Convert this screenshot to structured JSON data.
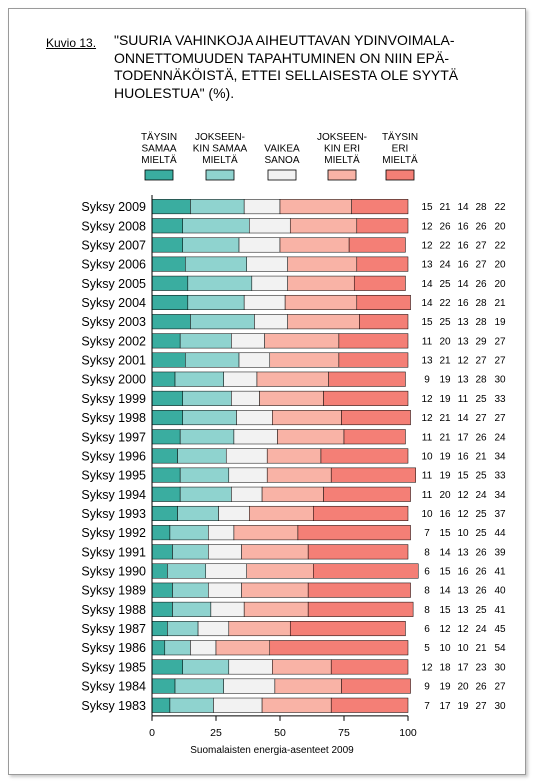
{
  "figure": {
    "label": "Kuvio 13.",
    "title": "\"SUURIA VAHINKOJA AIHEUTTAVAN YDINVOIMALA-\nONNETTOMUUDEN TAPAHTUMINEN ON NIIN EPÄ-\nTODENNÄKÖISTÄ, ETTEI SELLAISESTA OLE SYYTÄ\nHUOLESTUA\" (%).",
    "source": "Suomalaisten energia-asenteet 2009"
  },
  "chart_data": {
    "type": "bar",
    "stacked": true,
    "orientation": "horizontal",
    "xlim": [
      0,
      100
    ],
    "xticks": [
      0,
      25,
      50,
      75,
      100
    ],
    "legend_placement": "top",
    "categories": [
      "Syksy 2009",
      "Syksy 2008",
      "Syksy 2007",
      "Syksy 2006",
      "Syksy 2005",
      "Syksy 2004",
      "Syksy 2003",
      "Syksy 2002",
      "Syksy 2001",
      "Syksy 2000",
      "Syksy 1999",
      "Syksy 1998",
      "Syksy 1997",
      "Syksy 1996",
      "Syksy 1995",
      "Syksy 1994",
      "Syksy 1993",
      "Syksy 1992",
      "Syksy 1991",
      "Syksy 1990",
      "Syksy 1989",
      "Syksy 1988",
      "Syksy 1987",
      "Syksy 1986",
      "Syksy 1985",
      "Syksy 1984",
      "Syksy 1983"
    ],
    "series": [
      {
        "name": "TÄYSIN\nSAMAA\nMIELTÄ",
        "color": "#3aada0",
        "values": [
          15,
          12,
          12,
          13,
          14,
          14,
          15,
          11,
          13,
          9,
          12,
          12,
          11,
          10,
          11,
          11,
          10,
          7,
          8,
          6,
          8,
          8,
          6,
          5,
          12,
          9,
          7
        ]
      },
      {
        "name": "JOKSEEN-\nKIN SAMAA\nMIELTÄ",
        "color": "#8fd3cf",
        "values": [
          21,
          26,
          22,
          24,
          25,
          22,
          25,
          20,
          21,
          19,
          19,
          21,
          21,
          19,
          19,
          20,
          16,
          15,
          14,
          15,
          14,
          15,
          12,
          10,
          18,
          19,
          17
        ]
      },
      {
        "name": "VAIKEA\nSANOA",
        "color": "#f2f2f2",
        "values": [
          14,
          16,
          16,
          16,
          14,
          16,
          13,
          13,
          12,
          13,
          11,
          14,
          17,
          16,
          15,
          12,
          12,
          10,
          13,
          16,
          13,
          13,
          12,
          10,
          17,
          20,
          19
        ]
      },
      {
        "name": "JOKSEEN-\nKIN ERI\nMIELTÄ",
        "color": "#f9b3a6",
        "values": [
          28,
          26,
          27,
          27,
          26,
          28,
          28,
          29,
          27,
          28,
          25,
          27,
          26,
          21,
          25,
          24,
          25,
          25,
          26,
          26,
          26,
          25,
          24,
          21,
          23,
          26,
          27
        ]
      },
      {
        "name": "TÄYSIN\nERI\nMIELTÄ",
        "color": "#f47f76",
        "values": [
          22,
          20,
          22,
          20,
          20,
          21,
          19,
          27,
          27,
          30,
          33,
          27,
          24,
          34,
          33,
          34,
          37,
          44,
          39,
          41,
          40,
          41,
          45,
          54,
          30,
          27,
          30
        ]
      }
    ]
  }
}
